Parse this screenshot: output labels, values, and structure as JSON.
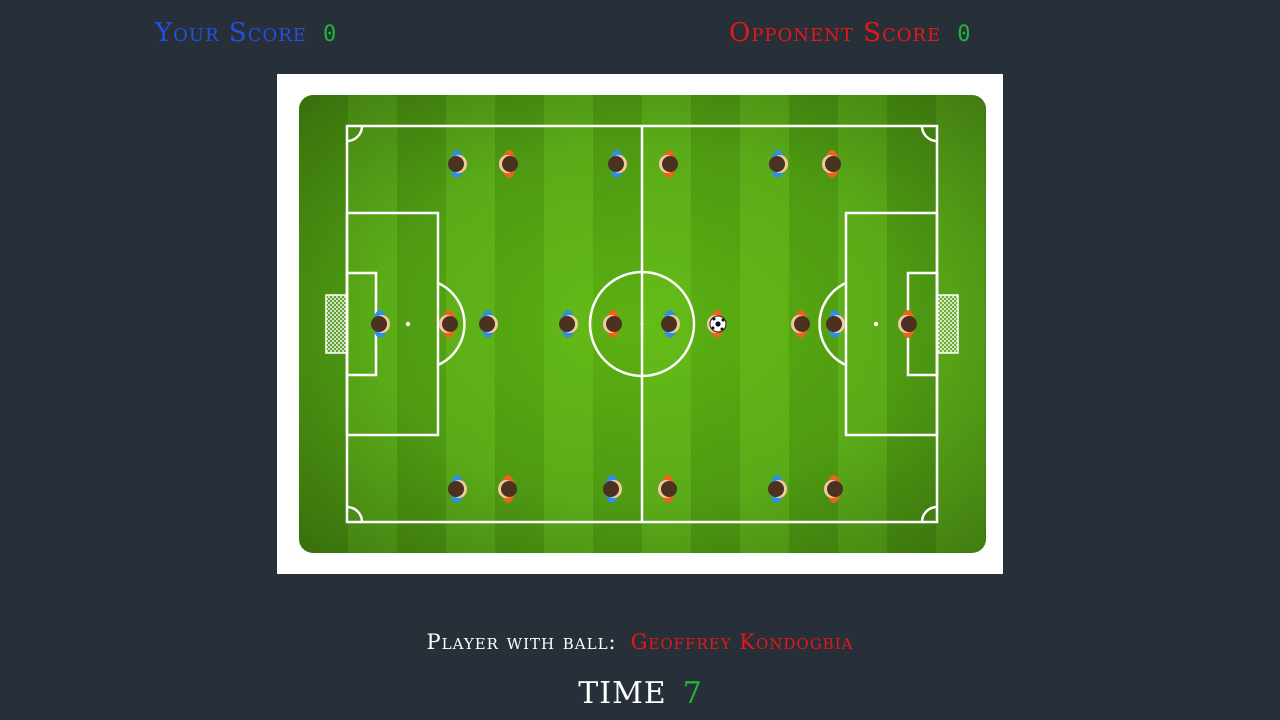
{
  "scoreboard": {
    "your_label": "Your Score",
    "your_score": "0",
    "opponent_label": "Opponent Score",
    "opponent_score": "0"
  },
  "status": {
    "ball_holder_label": "Player with ball:",
    "ball_holder_name": "Geoffrey Kondogbia",
    "time_label": "TIME",
    "time_value": "7"
  },
  "colors": {
    "your_team": "#2f8fe0",
    "opponent_team": "#e8661a",
    "score_value": "#23b53a",
    "opponent_accent": "#e8161b",
    "your_accent": "#2250e6"
  },
  "icons": {
    "player": "player-topdown-icon",
    "ball": "soccer-ball-icon",
    "goal": "goal-net-icon"
  }
}
